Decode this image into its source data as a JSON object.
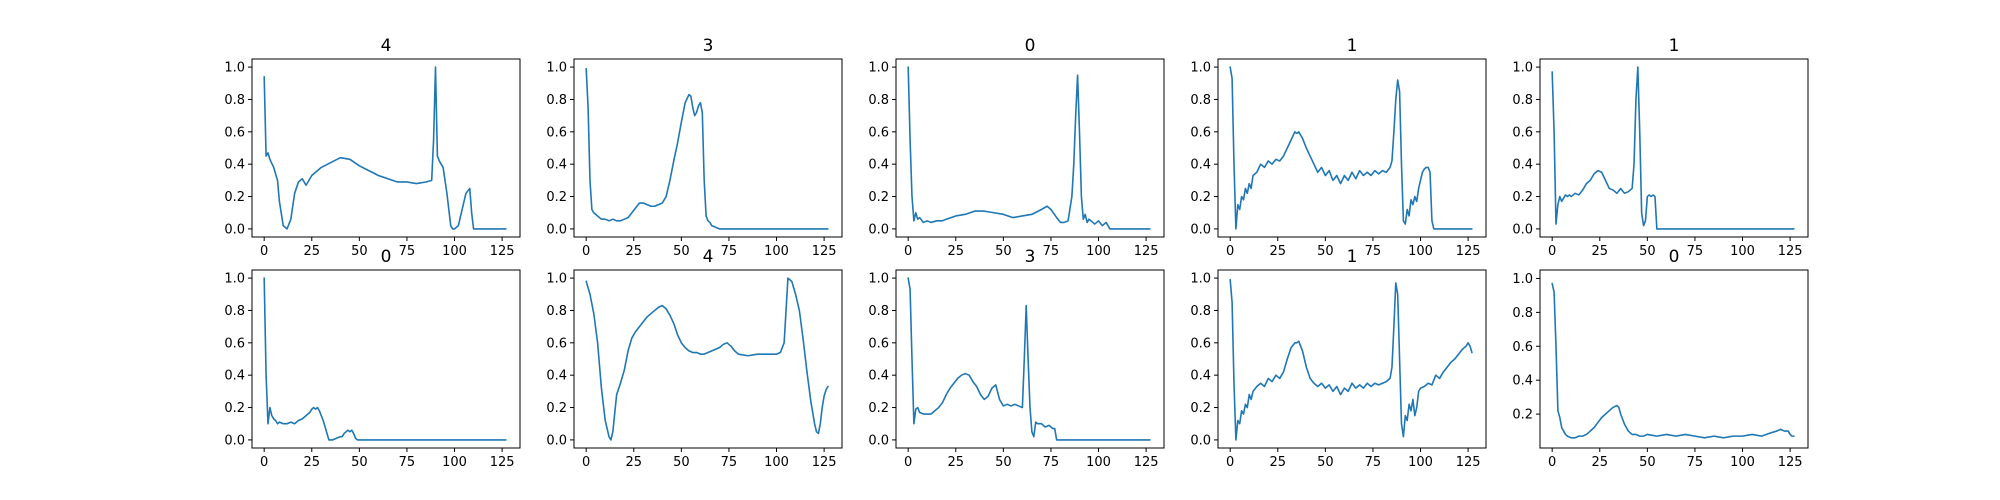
{
  "figure": {
    "line_color": "#1f77b4",
    "background": "#ffffff"
  },
  "chart_data": [
    {
      "type": "line",
      "title": "4",
      "xlim": [
        -6.4,
        134.4
      ],
      "ylim": [
        -0.05,
        1.05
      ],
      "xticks": [
        0,
        25,
        50,
        75,
        100,
        125
      ],
      "yticks": [
        0.0,
        0.2,
        0.4,
        0.6,
        0.8,
        1.0
      ],
      "x": [
        0,
        1,
        2,
        3,
        5,
        7,
        8,
        10,
        12,
        14,
        16,
        18,
        20,
        22,
        25,
        30,
        35,
        40,
        45,
        50,
        55,
        60,
        65,
        70,
        75,
        80,
        85,
        88,
        89,
        90,
        91,
        92,
        93,
        94,
        96,
        98,
        99,
        100,
        102,
        104,
        106,
        108,
        109,
        110,
        111,
        115,
        120,
        125,
        127
      ],
      "y": [
        0.94,
        0.45,
        0.47,
        0.43,
        0.38,
        0.3,
        0.17,
        0.02,
        0.0,
        0.06,
        0.22,
        0.29,
        0.31,
        0.27,
        0.33,
        0.38,
        0.41,
        0.44,
        0.43,
        0.39,
        0.36,
        0.33,
        0.31,
        0.29,
        0.29,
        0.28,
        0.29,
        0.3,
        0.55,
        1.0,
        0.45,
        0.42,
        0.4,
        0.38,
        0.22,
        0.02,
        0.0,
        0.0,
        0.02,
        0.12,
        0.22,
        0.25,
        0.1,
        0.0,
        0.0,
        0.0,
        0.0,
        0.0,
        0.0
      ]
    },
    {
      "type": "line",
      "title": "3",
      "xlim": [
        -6.4,
        134.4
      ],
      "ylim": [
        -0.05,
        1.05
      ],
      "xticks": [
        0,
        25,
        50,
        75,
        100,
        125
      ],
      "yticks": [
        0.0,
        0.2,
        0.4,
        0.6,
        0.8,
        1.0
      ],
      "x": [
        0,
        1,
        2,
        3,
        4,
        5,
        6,
        8,
        10,
        12,
        14,
        16,
        18,
        20,
        22,
        24,
        26,
        28,
        30,
        32,
        34,
        36,
        38,
        40,
        42,
        44,
        46,
        48,
        50,
        52,
        54,
        55,
        56,
        57,
        58,
        59,
        60,
        61,
        62,
        63,
        64,
        65,
        66,
        68,
        70,
        75,
        80,
        90,
        100,
        110,
        120,
        127
      ],
      "y": [
        0.99,
        0.75,
        0.3,
        0.12,
        0.1,
        0.09,
        0.08,
        0.06,
        0.06,
        0.05,
        0.06,
        0.05,
        0.05,
        0.06,
        0.07,
        0.1,
        0.13,
        0.16,
        0.16,
        0.15,
        0.14,
        0.14,
        0.15,
        0.16,
        0.2,
        0.3,
        0.42,
        0.53,
        0.66,
        0.78,
        0.83,
        0.82,
        0.75,
        0.7,
        0.72,
        0.76,
        0.78,
        0.72,
        0.3,
        0.08,
        0.05,
        0.04,
        0.02,
        0.01,
        0.0,
        0.0,
        0.0,
        0.0,
        0.0,
        0.0,
        0.0,
        0.0
      ]
    },
    {
      "type": "line",
      "title": "0",
      "xlim": [
        -6.4,
        134.4
      ],
      "ylim": [
        -0.05,
        1.05
      ],
      "xticks": [
        0,
        25,
        50,
        75,
        100,
        125
      ],
      "yticks": [
        0.0,
        0.2,
        0.4,
        0.6,
        0.8,
        1.0
      ],
      "x": [
        0,
        1,
        2,
        3,
        4,
        5,
        6,
        8,
        10,
        12,
        15,
        18,
        20,
        25,
        30,
        35,
        40,
        45,
        50,
        55,
        60,
        65,
        70,
        73,
        75,
        78,
        80,
        82,
        84,
        86,
        87,
        88,
        89,
        90,
        91,
        92,
        93,
        94,
        95,
        96,
        98,
        100,
        102,
        104,
        105,
        106,
        110,
        115,
        120,
        125,
        127
      ],
      "y": [
        1.0,
        0.55,
        0.2,
        0.05,
        0.1,
        0.06,
        0.07,
        0.04,
        0.05,
        0.04,
        0.05,
        0.05,
        0.06,
        0.08,
        0.09,
        0.11,
        0.11,
        0.1,
        0.09,
        0.07,
        0.08,
        0.09,
        0.12,
        0.14,
        0.12,
        0.07,
        0.04,
        0.04,
        0.05,
        0.2,
        0.4,
        0.7,
        0.95,
        0.6,
        0.2,
        0.06,
        0.09,
        0.04,
        0.06,
        0.05,
        0.03,
        0.05,
        0.02,
        0.04,
        0.02,
        0.0,
        0.0,
        0.0,
        0.0,
        0.0,
        0.0
      ]
    },
    {
      "type": "line",
      "title": "1",
      "xlim": [
        -6.4,
        134.4
      ],
      "ylim": [
        -0.05,
        1.05
      ],
      "xticks": [
        0,
        25,
        50,
        75,
        100,
        125
      ],
      "yticks": [
        0.0,
        0.2,
        0.4,
        0.6,
        0.8,
        1.0
      ],
      "x": [
        0,
        1,
        2,
        3,
        4,
        5,
        6,
        7,
        8,
        9,
        10,
        11,
        12,
        14,
        16,
        18,
        20,
        22,
        24,
        26,
        28,
        30,
        32,
        34,
        35,
        36,
        38,
        40,
        42,
        44,
        46,
        48,
        50,
        52,
        54,
        56,
        58,
        60,
        62,
        64,
        66,
        68,
        70,
        72,
        74,
        76,
        78,
        80,
        82,
        84,
        85,
        86,
        87,
        88,
        89,
        90,
        91,
        92,
        93,
        94,
        95,
        96,
        97,
        98,
        99,
        100,
        101,
        102,
        103,
        104,
        105,
        106,
        107,
        110,
        115,
        120,
        125,
        127
      ],
      "y": [
        1.0,
        0.93,
        0.4,
        0.0,
        0.15,
        0.12,
        0.2,
        0.18,
        0.25,
        0.22,
        0.28,
        0.25,
        0.33,
        0.35,
        0.4,
        0.38,
        0.42,
        0.4,
        0.43,
        0.42,
        0.45,
        0.5,
        0.55,
        0.6,
        0.59,
        0.6,
        0.56,
        0.5,
        0.45,
        0.4,
        0.35,
        0.38,
        0.33,
        0.36,
        0.3,
        0.33,
        0.28,
        0.33,
        0.3,
        0.35,
        0.31,
        0.36,
        0.33,
        0.35,
        0.33,
        0.36,
        0.34,
        0.36,
        0.35,
        0.38,
        0.42,
        0.6,
        0.8,
        0.92,
        0.85,
        0.4,
        0.05,
        0.03,
        0.12,
        0.08,
        0.18,
        0.15,
        0.2,
        0.17,
        0.25,
        0.3,
        0.35,
        0.37,
        0.38,
        0.38,
        0.35,
        0.05,
        0.0,
        0.0,
        0.0,
        0.0,
        0.0,
        0.0
      ]
    },
    {
      "type": "line",
      "title": "1",
      "xlim": [
        -6.4,
        134.4
      ],
      "ylim": [
        -0.05,
        1.05
      ],
      "xticks": [
        0,
        25,
        50,
        75,
        100,
        125
      ],
      "yticks": [
        0.0,
        0.2,
        0.4,
        0.6,
        0.8,
        1.0
      ],
      "x": [
        0,
        1,
        2,
        3,
        4,
        5,
        6,
        7,
        8,
        9,
        10,
        12,
        14,
        16,
        18,
        20,
        22,
        24,
        26,
        28,
        30,
        32,
        34,
        36,
        38,
        40,
        42,
        43,
        44,
        45,
        46,
        47,
        48,
        49,
        50,
        51,
        52,
        53,
        54,
        55,
        56,
        57,
        60,
        70,
        80,
        90,
        100,
        110,
        120,
        127
      ],
      "y": [
        0.97,
        0.6,
        0.03,
        0.15,
        0.2,
        0.17,
        0.19,
        0.21,
        0.2,
        0.21,
        0.2,
        0.22,
        0.21,
        0.24,
        0.28,
        0.3,
        0.34,
        0.36,
        0.35,
        0.3,
        0.25,
        0.24,
        0.22,
        0.25,
        0.22,
        0.23,
        0.25,
        0.4,
        0.8,
        1.0,
        0.6,
        0.1,
        0.02,
        0.05,
        0.2,
        0.21,
        0.2,
        0.21,
        0.2,
        0.0,
        0.0,
        0.0,
        0.0,
        0.0,
        0.0,
        0.0,
        0.0,
        0.0,
        0.0,
        0.0
      ]
    },
    {
      "type": "line",
      "title": "0",
      "xlim": [
        -6.4,
        134.4
      ],
      "ylim": [
        -0.05,
        1.05
      ],
      "xticks": [
        0,
        25,
        50,
        75,
        100,
        125
      ],
      "yticks": [
        0.0,
        0.2,
        0.4,
        0.6,
        0.8,
        1.0
      ],
      "x": [
        0,
        1,
        2,
        3,
        4,
        5,
        6,
        7,
        8,
        10,
        12,
        14,
        16,
        18,
        20,
        22,
        24,
        25,
        26,
        27,
        28,
        29,
        30,
        31,
        32,
        34,
        36,
        38,
        40,
        41,
        42,
        43,
        44,
        45,
        46,
        47,
        48,
        49,
        50,
        55,
        60,
        70,
        80,
        90,
        100,
        110,
        120,
        127
      ],
      "y": [
        1.0,
        0.4,
        0.1,
        0.2,
        0.15,
        0.13,
        0.12,
        0.1,
        0.11,
        0.1,
        0.1,
        0.11,
        0.1,
        0.12,
        0.13,
        0.15,
        0.17,
        0.19,
        0.2,
        0.19,
        0.2,
        0.18,
        0.15,
        0.12,
        0.08,
        0.0,
        0.0,
        0.01,
        0.02,
        0.02,
        0.04,
        0.05,
        0.06,
        0.05,
        0.06,
        0.04,
        0.01,
        0.0,
        0.0,
        0.0,
        0.0,
        0.0,
        0.0,
        0.0,
        0.0,
        0.0,
        0.0,
        0.0
      ]
    },
    {
      "type": "line",
      "title": "4",
      "xlim": [
        -6.4,
        134.4
      ],
      "ylim": [
        -0.05,
        1.05
      ],
      "xticks": [
        0,
        25,
        50,
        75,
        100,
        125
      ],
      "yticks": [
        0.0,
        0.2,
        0.4,
        0.6,
        0.8,
        1.0
      ],
      "x": [
        0,
        2,
        4,
        6,
        8,
        10,
        12,
        13,
        14,
        16,
        18,
        20,
        22,
        24,
        26,
        28,
        30,
        32,
        34,
        36,
        38,
        40,
        42,
        44,
        46,
        48,
        50,
        52,
        54,
        56,
        58,
        60,
        62,
        64,
        66,
        68,
        70,
        72,
        74,
        76,
        78,
        80,
        85,
        90,
        95,
        100,
        102,
        104,
        105,
        106,
        108,
        110,
        112,
        114,
        116,
        118,
        120,
        121,
        122,
        123,
        124,
        125,
        126,
        127
      ],
      "y": [
        0.98,
        0.9,
        0.78,
        0.6,
        0.32,
        0.12,
        0.02,
        0.0,
        0.05,
        0.28,
        0.35,
        0.43,
        0.55,
        0.63,
        0.67,
        0.7,
        0.73,
        0.76,
        0.78,
        0.8,
        0.82,
        0.83,
        0.81,
        0.77,
        0.72,
        0.65,
        0.6,
        0.57,
        0.55,
        0.54,
        0.54,
        0.53,
        0.53,
        0.54,
        0.55,
        0.56,
        0.57,
        0.59,
        0.6,
        0.58,
        0.55,
        0.53,
        0.52,
        0.53,
        0.53,
        0.53,
        0.54,
        0.6,
        0.8,
        1.0,
        0.98,
        0.9,
        0.8,
        0.62,
        0.42,
        0.24,
        0.1,
        0.05,
        0.04,
        0.1,
        0.2,
        0.27,
        0.31,
        0.33
      ]
    },
    {
      "type": "line",
      "title": "3",
      "xlim": [
        -6.4,
        134.4
      ],
      "ylim": [
        -0.05,
        1.05
      ],
      "xticks": [
        0,
        25,
        50,
        75,
        100,
        125
      ],
      "yticks": [
        0.0,
        0.2,
        0.4,
        0.6,
        0.8,
        1.0
      ],
      "x": [
        0,
        1,
        2,
        3,
        4,
        5,
        6,
        8,
        10,
        12,
        14,
        16,
        18,
        20,
        22,
        24,
        26,
        28,
        30,
        32,
        34,
        36,
        38,
        40,
        42,
        44,
        46,
        48,
        50,
        52,
        54,
        56,
        58,
        60,
        61,
        62,
        63,
        64,
        65,
        66,
        67,
        68,
        70,
        72,
        74,
        76,
        77,
        78,
        80,
        90,
        100,
        110,
        120,
        127
      ],
      "y": [
        1.0,
        0.93,
        0.5,
        0.1,
        0.19,
        0.2,
        0.17,
        0.16,
        0.16,
        0.16,
        0.18,
        0.2,
        0.23,
        0.28,
        0.32,
        0.35,
        0.38,
        0.4,
        0.41,
        0.4,
        0.36,
        0.33,
        0.28,
        0.25,
        0.27,
        0.32,
        0.34,
        0.25,
        0.21,
        0.22,
        0.21,
        0.22,
        0.21,
        0.2,
        0.5,
        0.83,
        0.5,
        0.2,
        0.05,
        0.02,
        0.11,
        0.1,
        0.1,
        0.08,
        0.09,
        0.07,
        0.07,
        0.0,
        0.0,
        0.0,
        0.0,
        0.0,
        0.0,
        0.0
      ]
    },
    {
      "type": "line",
      "title": "1",
      "xlim": [
        -6.4,
        134.4
      ],
      "ylim": [
        -0.05,
        1.05
      ],
      "xticks": [
        0,
        25,
        50,
        75,
        100,
        125
      ],
      "yticks": [
        0.0,
        0.2,
        0.4,
        0.6,
        0.8,
        1.0
      ],
      "x": [
        0,
        1,
        2,
        3,
        4,
        5,
        6,
        7,
        8,
        9,
        10,
        11,
        12,
        14,
        16,
        18,
        20,
        22,
        24,
        26,
        28,
        30,
        32,
        34,
        35,
        36,
        38,
        40,
        42,
        44,
        46,
        48,
        50,
        52,
        54,
        56,
        58,
        60,
        62,
        64,
        66,
        68,
        70,
        72,
        74,
        76,
        78,
        80,
        82,
        84,
        85,
        86,
        87,
        88,
        89,
        90,
        91,
        92,
        93,
        94,
        95,
        96,
        97,
        98,
        99,
        100,
        102,
        104,
        106,
        108,
        110,
        112,
        114,
        116,
        118,
        120,
        122,
        124,
        125,
        126,
        127
      ],
      "y": [
        0.99,
        0.85,
        0.35,
        0.0,
        0.12,
        0.1,
        0.18,
        0.16,
        0.22,
        0.2,
        0.28,
        0.25,
        0.3,
        0.33,
        0.35,
        0.33,
        0.38,
        0.36,
        0.4,
        0.38,
        0.42,
        0.5,
        0.57,
        0.6,
        0.6,
        0.61,
        0.55,
        0.45,
        0.38,
        0.35,
        0.33,
        0.35,
        0.32,
        0.34,
        0.3,
        0.33,
        0.28,
        0.32,
        0.3,
        0.35,
        0.32,
        0.34,
        0.32,
        0.35,
        0.33,
        0.35,
        0.34,
        0.35,
        0.36,
        0.38,
        0.45,
        0.7,
        0.97,
        0.9,
        0.5,
        0.1,
        0.02,
        0.15,
        0.12,
        0.22,
        0.18,
        0.25,
        0.15,
        0.2,
        0.3,
        0.32,
        0.33,
        0.35,
        0.34,
        0.4,
        0.38,
        0.42,
        0.45,
        0.48,
        0.5,
        0.53,
        0.56,
        0.58,
        0.6,
        0.58,
        0.54
      ]
    },
    {
      "type": "line",
      "title": "0",
      "xlim": [
        -6.4,
        134.4
      ],
      "ylim": [
        0.0,
        1.05
      ],
      "xticks": [
        0,
        25,
        50,
        75,
        100,
        125
      ],
      "yticks": [
        0.2,
        0.4,
        0.6,
        0.8,
        1.0
      ],
      "x": [
        0,
        1,
        2,
        3,
        4,
        5,
        6,
        7,
        8,
        10,
        12,
        14,
        16,
        18,
        20,
        22,
        24,
        26,
        28,
        30,
        32,
        34,
        35,
        36,
        38,
        40,
        42,
        44,
        46,
        48,
        50,
        55,
        60,
        65,
        70,
        75,
        80,
        85,
        90,
        95,
        100,
        105,
        110,
        115,
        118,
        120,
        122,
        124,
        125,
        126,
        127
      ],
      "y": [
        0.97,
        0.92,
        0.6,
        0.22,
        0.18,
        0.12,
        0.1,
        0.08,
        0.07,
        0.06,
        0.06,
        0.07,
        0.07,
        0.08,
        0.1,
        0.12,
        0.15,
        0.18,
        0.2,
        0.22,
        0.24,
        0.25,
        0.24,
        0.2,
        0.14,
        0.1,
        0.08,
        0.08,
        0.07,
        0.07,
        0.08,
        0.07,
        0.08,
        0.07,
        0.08,
        0.07,
        0.06,
        0.07,
        0.06,
        0.07,
        0.07,
        0.08,
        0.07,
        0.09,
        0.1,
        0.11,
        0.1,
        0.1,
        0.08,
        0.07,
        0.07
      ]
    }
  ]
}
